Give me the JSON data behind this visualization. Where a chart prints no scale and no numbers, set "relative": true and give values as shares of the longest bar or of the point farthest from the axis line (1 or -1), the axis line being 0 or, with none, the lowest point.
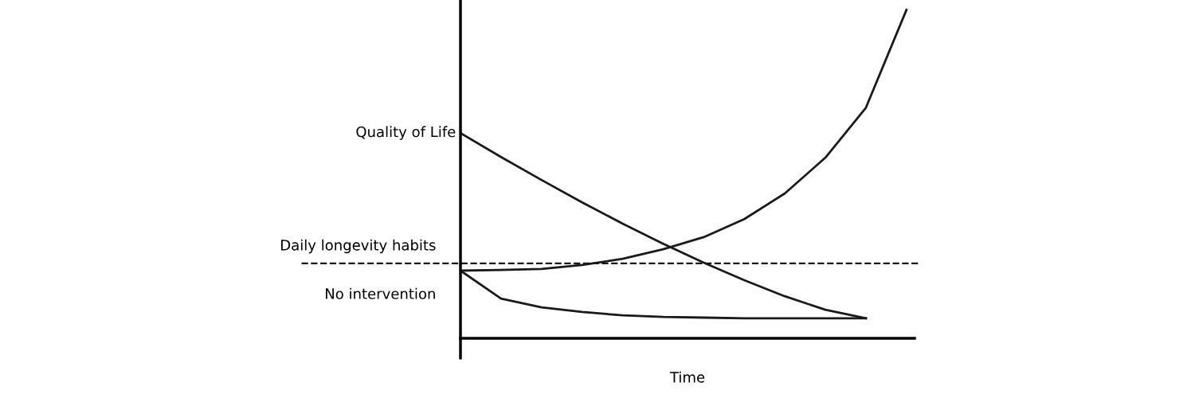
{
  "chart_data": {
    "type": "line",
    "relative": true,
    "ylabel": "Quality of Life",
    "xlabel": "Time",
    "categories": [
      null,
      null,
      null,
      null,
      null,
      null,
      null,
      null,
      null,
      null,
      null,
      null
    ],
    "series": [
      {
        "name": "Daily longevity habits",
        "color": "#1a1a1a",
        "values": [
          0.206,
          0.208,
          0.211,
          0.223,
          0.242,
          0.271,
          0.308,
          0.363,
          0.441,
          0.55,
          0.702,
          1
        ]
      },
      {
        "color": "#1a1a1a",
        "values": [
          0.625,
          0.552,
          0.482,
          0.414,
          0.349,
          0.288,
          0.23,
          0.177,
          0.128,
          0.087,
          0.061,
          null
        ]
      },
      {
        "name": "No intervention",
        "color": "#1a1a1a",
        "values": [
          0.206,
          0.121,
          0.094,
          0.08,
          0.07,
          0.065,
          0.063,
          0.061,
          0.061,
          0.061,
          0.061,
          null
        ]
      }
    ],
    "ref_lines": [
      {
        "axis": "y",
        "value": 0.228,
        "color": "#1a1a1a",
        "line_style": "dashed"
      }
    ],
    "grid": false,
    "legend": false,
    "marker": "none",
    "line_style": "solid"
  }
}
